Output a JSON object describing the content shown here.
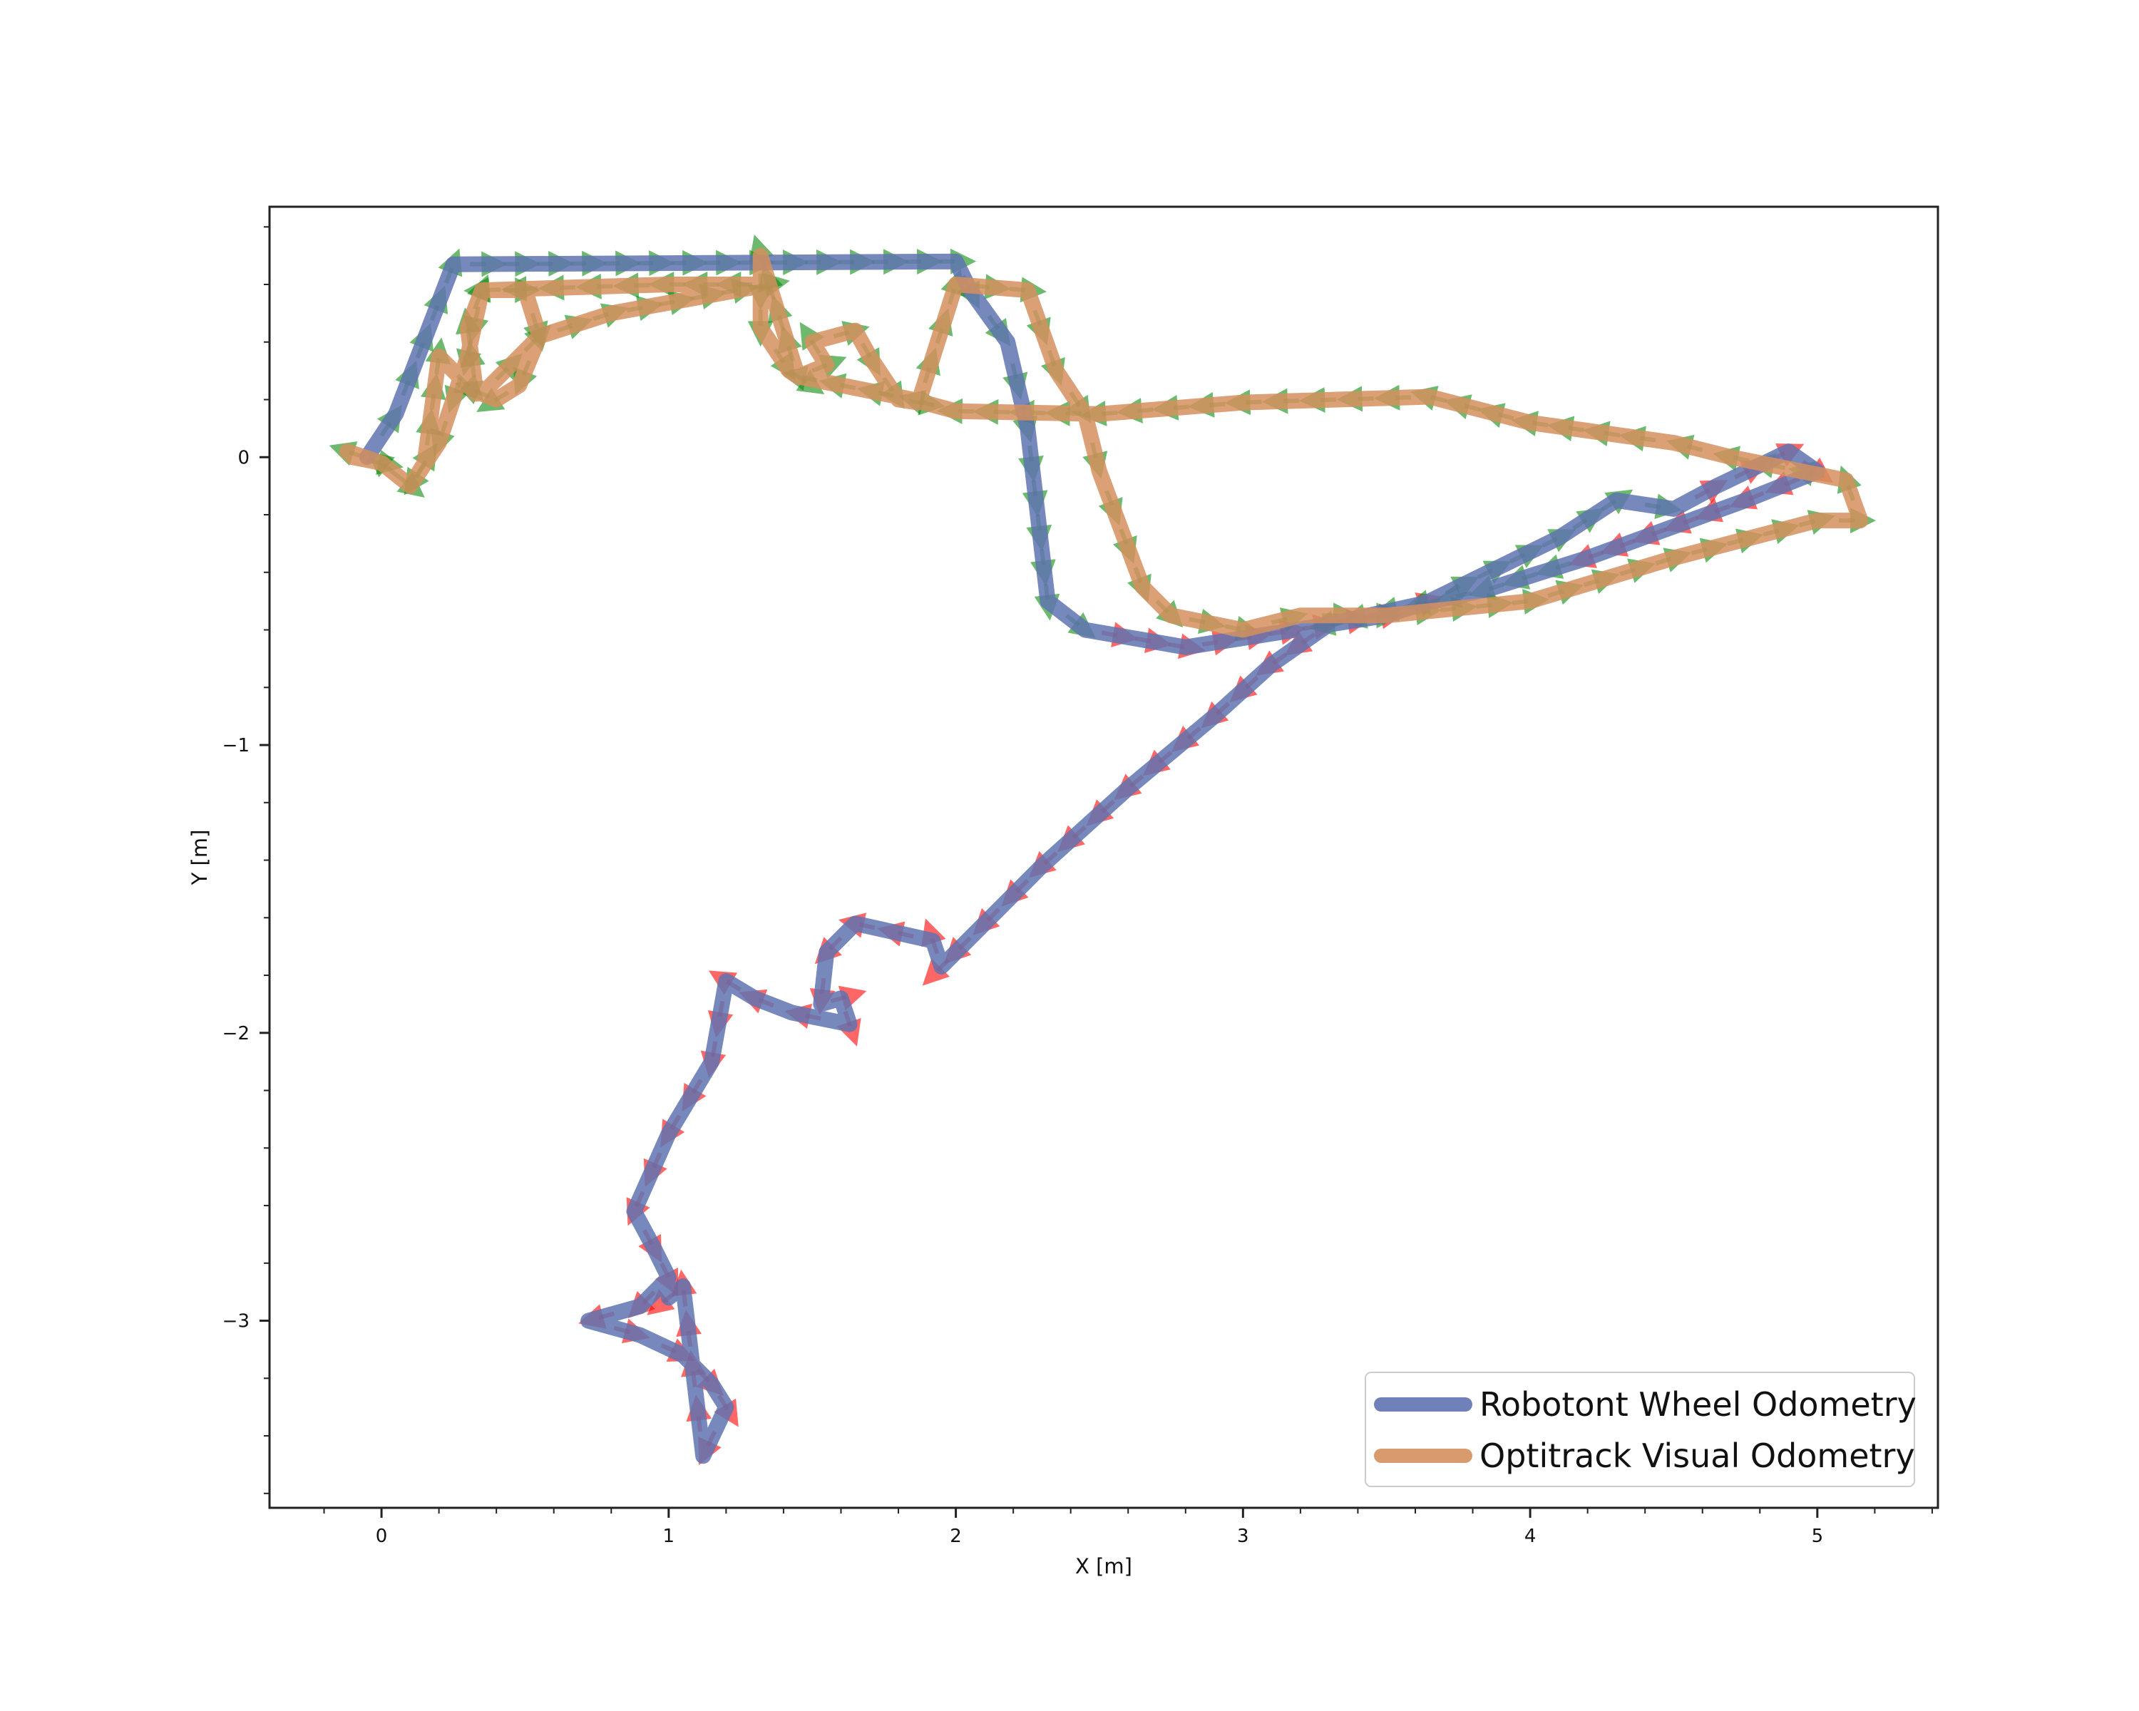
{
  "chart_data": {
    "type": "line",
    "title": "",
    "xlabel": "X [m]",
    "ylabel": "Y [m]",
    "xlim": [
      -0.39,
      5.42
    ],
    "ylim": [
      -3.65,
      0.87
    ],
    "xticks": [
      0,
      1,
      2,
      3,
      4,
      5
    ],
    "yticks": [
      0,
      -1,
      -2,
      -3
    ],
    "xtick_labels": [
      "0",
      "1",
      "2",
      "3",
      "4",
      "5"
    ],
    "ytick_labels": [
      "0",
      "−1",
      "−2",
      "−3"
    ],
    "grid": false,
    "legend_position": "lower-right",
    "series": [
      {
        "name": "Robotont Wheel Odometry",
        "color": "#5f73b0",
        "points": [
          [
            -0.05,
            0.0
          ],
          [
            0.05,
            0.15
          ],
          [
            0.25,
            0.67
          ],
          [
            2.0,
            0.68
          ],
          [
            2.05,
            0.58
          ],
          [
            2.18,
            0.4
          ],
          [
            2.25,
            0.1
          ],
          [
            2.32,
            -0.5
          ],
          [
            2.45,
            -0.6
          ],
          [
            2.8,
            -0.66
          ],
          [
            3.5,
            -0.55
          ],
          [
            3.65,
            -0.5
          ],
          [
            4.1,
            -0.28
          ],
          [
            4.3,
            -0.15
          ],
          [
            4.5,
            -0.18
          ],
          [
            4.65,
            -0.1
          ],
          [
            4.9,
            0.02
          ],
          [
            5.0,
            -0.05
          ],
          [
            4.75,
            -0.15
          ],
          [
            4.2,
            -0.35
          ],
          [
            3.85,
            -0.46
          ],
          [
            3.3,
            -0.58
          ],
          [
            3.1,
            -0.72
          ],
          [
            2.9,
            -0.9
          ],
          [
            2.6,
            -1.15
          ],
          [
            2.3,
            -1.42
          ],
          [
            2.0,
            -1.72
          ],
          [
            1.95,
            -1.77
          ],
          [
            1.92,
            -1.68
          ],
          [
            1.65,
            -1.62
          ],
          [
            1.55,
            -1.72
          ],
          [
            1.53,
            -1.9
          ],
          [
            1.6,
            -1.88
          ],
          [
            1.63,
            -1.97
          ],
          [
            1.43,
            -1.93
          ],
          [
            1.3,
            -1.88
          ],
          [
            1.2,
            -1.82
          ],
          [
            1.15,
            -2.1
          ],
          [
            1.0,
            -2.35
          ],
          [
            0.88,
            -2.62
          ],
          [
            0.95,
            -2.75
          ],
          [
            1.0,
            -2.85
          ],
          [
            0.9,
            -2.95
          ],
          [
            0.72,
            -3.0
          ],
          [
            0.9,
            -3.05
          ],
          [
            1.05,
            -3.12
          ],
          [
            1.15,
            -3.22
          ],
          [
            1.2,
            -3.3
          ],
          [
            1.12,
            -3.47
          ],
          [
            1.1,
            -3.3
          ],
          [
            1.05,
            -2.88
          ],
          [
            1.0,
            -2.92
          ]
        ]
      },
      {
        "name": "Optitrack Visual Odometry",
        "color": "#d58f5e",
        "points": [
          [
            -0.1,
            0.0
          ],
          [
            0.0,
            -0.02
          ],
          [
            0.1,
            -0.1
          ],
          [
            0.15,
            -0.02
          ],
          [
            0.2,
            0.35
          ],
          [
            0.33,
            0.22
          ],
          [
            0.3,
            0.45
          ],
          [
            0.35,
            0.58
          ],
          [
            0.5,
            0.58
          ],
          [
            0.55,
            0.42
          ],
          [
            0.48,
            0.25
          ],
          [
            0.4,
            0.2
          ],
          [
            0.35,
            0.22
          ],
          [
            0.55,
            0.42
          ],
          [
            0.8,
            0.5
          ],
          [
            1.35,
            0.6
          ],
          [
            1.32,
            0.7
          ],
          [
            1.32,
            0.45
          ],
          [
            1.42,
            0.3
          ],
          [
            1.45,
            0.28
          ],
          [
            1.55,
            0.32
          ],
          [
            1.5,
            0.4
          ],
          [
            1.65,
            0.44
          ],
          [
            1.7,
            0.35
          ],
          [
            1.8,
            0.2
          ],
          [
            1.87,
            0.19
          ],
          [
            2.0,
            0.6
          ],
          [
            2.25,
            0.58
          ],
          [
            2.35,
            0.3
          ],
          [
            2.45,
            0.15
          ],
          [
            2.5,
            -0.05
          ],
          [
            2.65,
            -0.45
          ],
          [
            2.75,
            -0.55
          ],
          [
            3.0,
            -0.6
          ],
          [
            3.2,
            -0.55
          ],
          [
            3.5,
            -0.55
          ],
          [
            4.0,
            -0.5
          ],
          [
            4.5,
            -0.35
          ],
          [
            5.0,
            -0.22
          ],
          [
            5.15,
            -0.22
          ],
          [
            5.1,
            -0.08
          ],
          [
            4.95,
            -0.05
          ],
          [
            4.7,
            0.0
          ],
          [
            4.5,
            0.05
          ],
          [
            4.0,
            0.12
          ],
          [
            3.65,
            0.21
          ],
          [
            3.0,
            0.19
          ],
          [
            2.5,
            0.15
          ],
          [
            2.0,
            0.16
          ],
          [
            1.85,
            0.2
          ],
          [
            1.45,
            0.28
          ],
          [
            1.35,
            0.6
          ],
          [
            1.0,
            0.6
          ],
          [
            0.35,
            0.58
          ],
          [
            0.3,
            0.35
          ],
          [
            0.25,
            0.2
          ],
          [
            0.2,
            0.05
          ],
          [
            0.1,
            -0.1
          ],
          [
            0.0,
            -0.02
          ],
          [
            -0.12,
            0.02
          ]
        ]
      }
    ]
  }
}
